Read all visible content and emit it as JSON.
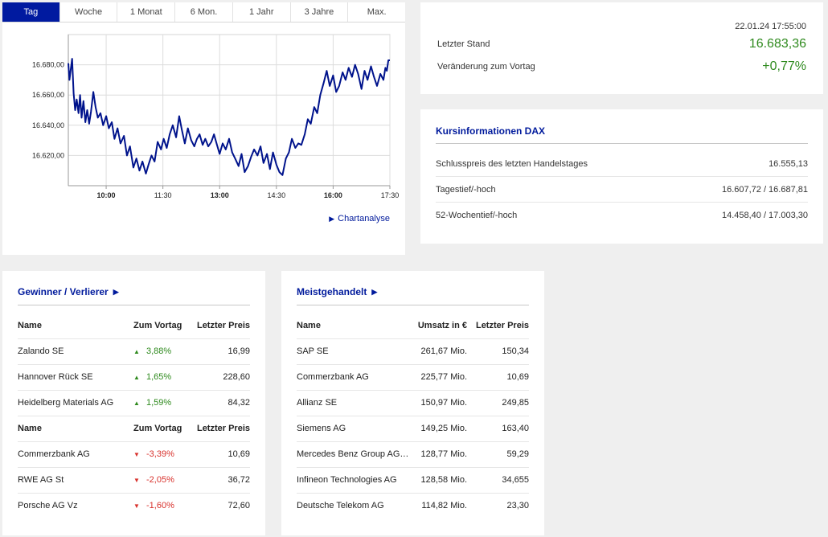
{
  "tabs": [
    "Tag",
    "Woche",
    "1 Monat",
    "6 Mon.",
    "1 Jahr",
    "3 Jahre",
    "Max."
  ],
  "active_tab": "Tag",
  "chart_link": "Chartanalyse",
  "chart_data": {
    "type": "line",
    "title": "",
    "xlabel": "",
    "ylabel": "",
    "x_ticks": [
      "10:00",
      "11:30",
      "13:00",
      "14:30",
      "16:00",
      "17:30"
    ],
    "x_tick_hours": [
      10,
      11.5,
      13,
      14.5,
      16,
      17.5
    ],
    "y_ticks": [
      "16.620,00",
      "16.640,00",
      "16.660,00",
      "16.680,00"
    ],
    "y_tick_values": [
      16620,
      16640,
      16660,
      16680
    ],
    "xlim": [
      9.0,
      17.5
    ],
    "ylim": [
      16600,
      16700
    ],
    "color": "#00138c",
    "series": [
      {
        "name": "DAX",
        "x": [
          9.0,
          9.03,
          9.06,
          9.1,
          9.14,
          9.18,
          9.22,
          9.27,
          9.31,
          9.35,
          9.4,
          9.45,
          9.5,
          9.55,
          9.6,
          9.66,
          9.72,
          9.78,
          9.85,
          9.92,
          10.0,
          10.07,
          10.15,
          10.22,
          10.3,
          10.38,
          10.47,
          10.55,
          10.63,
          10.72,
          10.8,
          10.88,
          10.96,
          11.05,
          11.12,
          11.2,
          11.28,
          11.36,
          11.45,
          11.52,
          11.6,
          11.68,
          11.76,
          11.85,
          11.93,
          12.0,
          12.08,
          12.16,
          12.25,
          12.33,
          12.4,
          12.47,
          12.55,
          12.62,
          12.7,
          12.78,
          12.85,
          12.93,
          13.0,
          13.08,
          13.16,
          13.25,
          13.33,
          13.41,
          13.5,
          13.58,
          13.66,
          13.75,
          13.83,
          13.91,
          14.0,
          14.08,
          14.16,
          14.25,
          14.33,
          14.41,
          14.5,
          14.58,
          14.66,
          14.75,
          14.83,
          14.91,
          15.0,
          15.08,
          15.16,
          15.25,
          15.33,
          15.41,
          15.5,
          15.58,
          15.66,
          15.75,
          15.83,
          15.91,
          16.0,
          16.08,
          16.16,
          16.25,
          16.33,
          16.41,
          16.5,
          16.58,
          16.66,
          16.75,
          16.83,
          16.91,
          17.0,
          17.08,
          17.16,
          17.25,
          17.33,
          17.38,
          17.42,
          17.46,
          17.5
        ],
        "values": [
          16681,
          16670,
          16676,
          16684,
          16661,
          16650,
          16657,
          16648,
          16660,
          16645,
          16656,
          16642,
          16650,
          16641,
          16649,
          16662,
          16652,
          16645,
          16648,
          16640,
          16646,
          16638,
          16642,
          16631,
          16638,
          16628,
          16633,
          16620,
          16626,
          16612,
          16618,
          16610,
          16616,
          16608,
          16614,
          16620,
          16616,
          16629,
          16624,
          16631,
          16625,
          16634,
          16640,
          16632,
          16646,
          16637,
          16628,
          16638,
          16630,
          16626,
          16631,
          16634,
          16627,
          16631,
          16626,
          16629,
          16634,
          16627,
          16621,
          16628,
          16624,
          16631,
          16622,
          16618,
          16613,
          16621,
          16609,
          16613,
          16619,
          16624,
          16620,
          16626,
          16615,
          16621,
          16611,
          16622,
          16614,
          16609,
          16607,
          16618,
          16622,
          16631,
          16625,
          16628,
          16627,
          16634,
          16644,
          16641,
          16652,
          16648,
          16660,
          16668,
          16676,
          16666,
          16673,
          16662,
          16666,
          16675,
          16670,
          16678,
          16672,
          16680,
          16674,
          16664,
          16676,
          16670,
          16679,
          16672,
          16666,
          16674,
          16670,
          16678,
          16676,
          16683,
          16683
        ]
      }
    ]
  },
  "quote": {
    "date": "22.01.24 17:55:00",
    "last_label": "Letzter Stand",
    "last_value": "16.683,36",
    "change_label": "Veränderung zum Vortag",
    "change_value": "+0,77%",
    "positive_color": "#2f8a1e"
  },
  "kurs": {
    "title": "Kursinformationen DAX",
    "rows": [
      {
        "label": "Schlusspreis des letzten Handelstages",
        "value": "16.555,13"
      },
      {
        "label": "Tagestief/-hoch",
        "value": "16.607,72 / 16.687,81"
      },
      {
        "label": "52-Wochentief/-hoch",
        "value": "14.458,40 / 17.003,30"
      }
    ]
  },
  "gewinner": {
    "title": "Gewinner / Verlierer",
    "headers": [
      "Name",
      "Zum Vortag",
      "Letzter Preis"
    ],
    "gainers": [
      {
        "name": "Zalando SE",
        "change": "3,88%",
        "price": "16,99"
      },
      {
        "name": "Hannover Rück SE",
        "change": "1,65%",
        "price": "228,60"
      },
      {
        "name": "Heidelberg Materials AG",
        "change": "1,59%",
        "price": "84,32"
      }
    ],
    "losers": [
      {
        "name": "Commerzbank AG",
        "change": "-3,39%",
        "price": "10,69"
      },
      {
        "name": "RWE AG St",
        "change": "-2,05%",
        "price": "36,72"
      },
      {
        "name": "Porsche AG Vz",
        "change": "-1,60%",
        "price": "72,60"
      }
    ],
    "up_color": "#2f8a1e",
    "down_color": "#d8312c"
  },
  "meist": {
    "title": "Meistgehandelt",
    "headers": [
      "Name",
      "Umsatz in €",
      "Letzter Preis"
    ],
    "rows": [
      {
        "name": "SAP SE",
        "umsatz": "261,67 Mio.",
        "price": "150,34"
      },
      {
        "name": "Commerzbank AG",
        "umsatz": "225,77 Mio.",
        "price": "10,69"
      },
      {
        "name": "Allianz SE",
        "umsatz": "150,97 Mio.",
        "price": "249,85"
      },
      {
        "name": "Siemens AG",
        "umsatz": "149,25 Mio.",
        "price": "163,40"
      },
      {
        "name": "Mercedes Benz Group AG ...",
        "umsatz": "128,77 Mio.",
        "price": "59,29"
      },
      {
        "name": "Infineon Technologies AG",
        "umsatz": "128,58 Mio.",
        "price": "34,655"
      },
      {
        "name": "Deutsche Telekom AG",
        "umsatz": "114,82 Mio.",
        "price": "23,30"
      }
    ]
  }
}
